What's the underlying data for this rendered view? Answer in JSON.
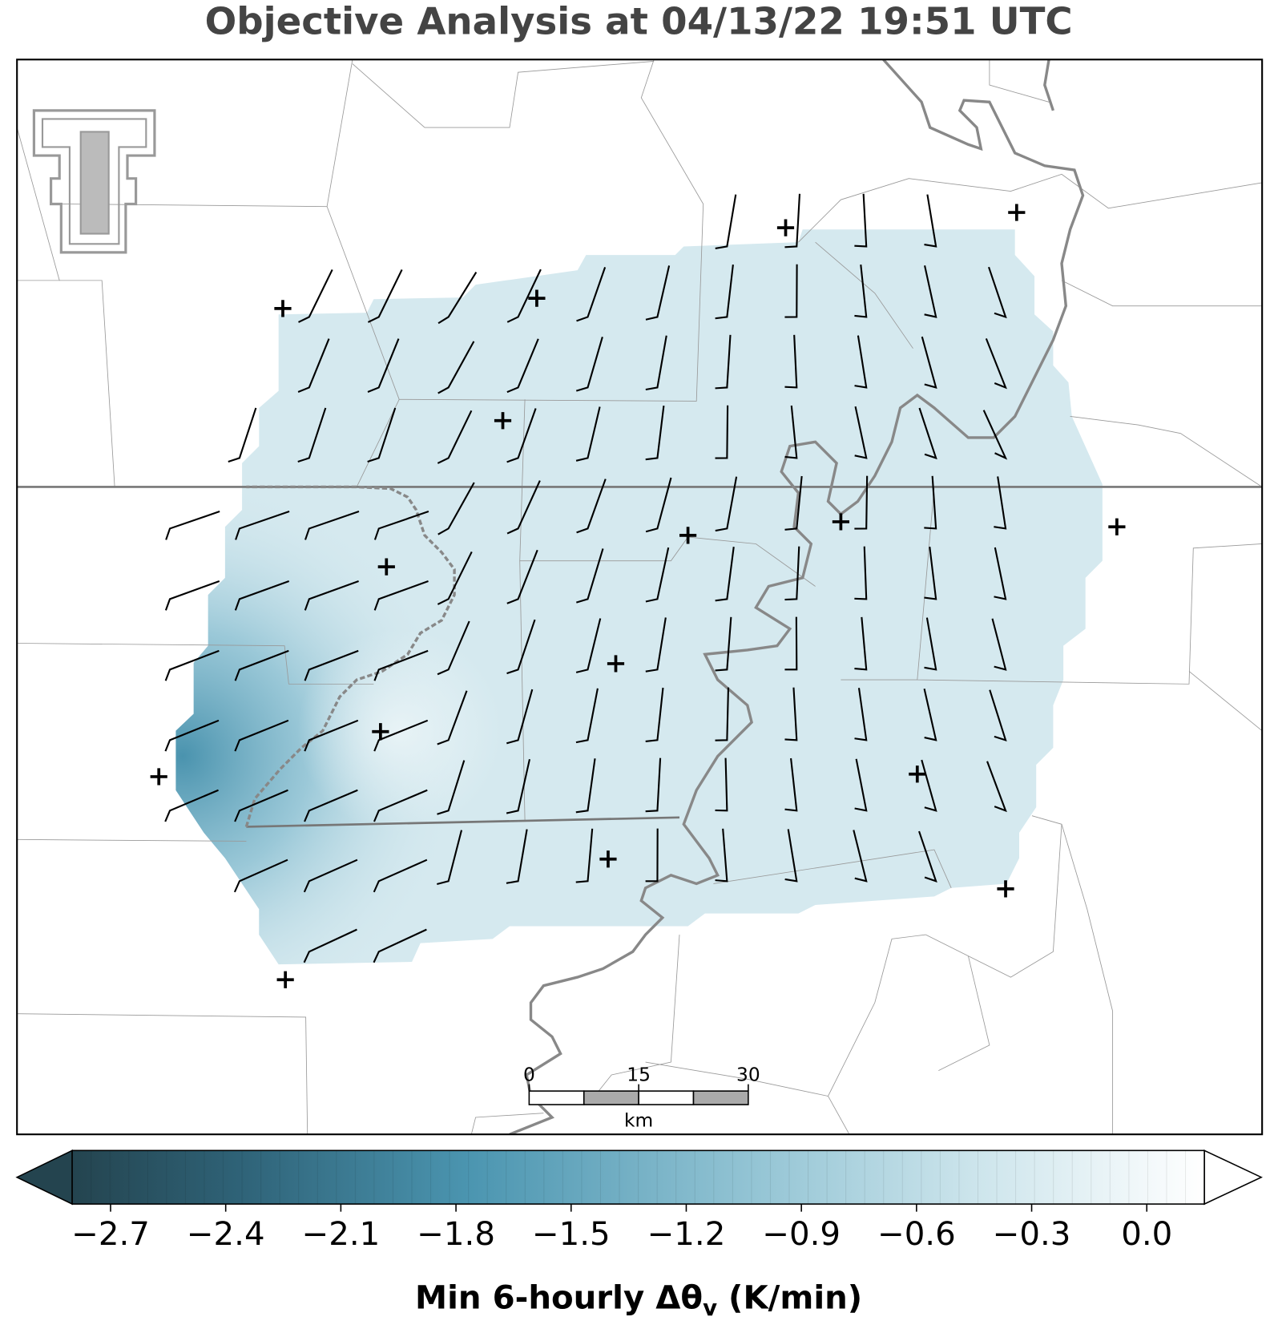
{
  "title": "Objective Analysis at 04/13/22 19:51 UTC",
  "scale_bar": {
    "ticks": [
      0,
      15,
      30
    ],
    "lim": [
      0,
      30
    ],
    "unit": "km"
  },
  "colorbar": {
    "label": "Min 6-hourly Δθ",
    "label_subscript": "v",
    "label_unit": " (K/min)",
    "lim": [
      -2.8,
      0.15
    ],
    "ticks": [
      {
        "value": -2.7,
        "label": "−2.7"
      },
      {
        "value": -2.4,
        "label": "−2.4"
      },
      {
        "value": -2.1,
        "label": "−2.1"
      },
      {
        "value": -1.8,
        "label": "−1.8"
      },
      {
        "value": -1.5,
        "label": "−1.5"
      },
      {
        "value": -1.2,
        "label": "−1.2"
      },
      {
        "value": -0.9,
        "label": "−0.9"
      },
      {
        "value": -0.6,
        "label": "−0.6"
      },
      {
        "value": -0.3,
        "label": "−0.3"
      },
      {
        "value": 0,
        "label": "0.0"
      }
    ]
  }
}
